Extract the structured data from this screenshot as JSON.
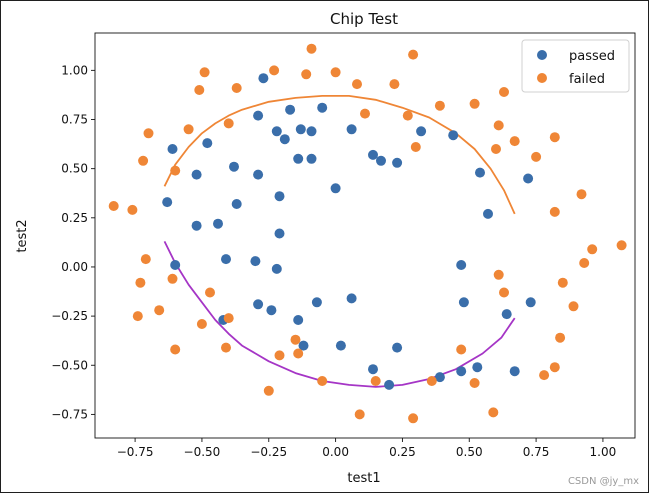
{
  "chart_data": {
    "type": "scatter",
    "title": "Chip Test",
    "xlabel": "test1",
    "ylabel": "test2",
    "xlim": [
      -0.9,
      1.12
    ],
    "ylim": [
      -0.87,
      1.19
    ],
    "xticks": [
      -0.75,
      -0.5,
      -0.25,
      0.0,
      0.25,
      0.5,
      0.75,
      1.0
    ],
    "xtick_labels": [
      "−0.75",
      "−0.50",
      "−0.25",
      "0.00",
      "0.25",
      "0.50",
      "0.75",
      "1.00"
    ],
    "yticks": [
      -0.75,
      -0.5,
      -0.25,
      0.0,
      0.25,
      0.5,
      0.75,
      1.0
    ],
    "ytick_labels": [
      "−0.75",
      "−0.50",
      "−0.25",
      "0.00",
      "0.25",
      "0.50",
      "0.75",
      "1.00"
    ],
    "grid": false,
    "legend_position": "top-right",
    "series": [
      {
        "name": "passed",
        "color": "#3a6eaa",
        "points": [
          [
            -0.61,
            0.6
          ],
          [
            -0.52,
            0.47
          ],
          [
            -0.48,
            0.63
          ],
          [
            -0.38,
            0.51
          ],
          [
            -0.27,
            0.96
          ],
          [
            -0.29,
            0.77
          ],
          [
            -0.22,
            0.69
          ],
          [
            -0.17,
            0.8
          ],
          [
            -0.13,
            0.7
          ],
          [
            -0.19,
            0.65
          ],
          [
            -0.14,
            0.55
          ],
          [
            -0.09,
            0.55
          ],
          [
            -0.09,
            0.69
          ],
          [
            -0.05,
            0.81
          ],
          [
            0.06,
            0.7
          ],
          [
            0.14,
            0.57
          ],
          [
            0.17,
            0.54
          ],
          [
            0.23,
            0.53
          ],
          [
            0.32,
            0.69
          ],
          [
            0.44,
            0.67
          ],
          [
            0.54,
            0.48
          ],
          [
            0.57,
            0.27
          ],
          [
            0.72,
            0.45
          ],
          [
            0.0,
            0.4
          ],
          [
            -0.63,
            0.33
          ],
          [
            -0.52,
            0.21
          ],
          [
            -0.44,
            0.22
          ],
          [
            -0.37,
            0.32
          ],
          [
            -0.21,
            0.36
          ],
          [
            -0.21,
            0.17
          ],
          [
            -0.29,
            0.47
          ],
          [
            -0.6,
            0.01
          ],
          [
            -0.41,
            0.04
          ],
          [
            -0.3,
            0.03
          ],
          [
            -0.22,
            -0.01
          ],
          [
            -0.42,
            -0.27
          ],
          [
            -0.29,
            -0.19
          ],
          [
            -0.24,
            -0.22
          ],
          [
            -0.14,
            -0.27
          ],
          [
            -0.12,
            -0.4
          ],
          [
            -0.07,
            -0.18
          ],
          [
            0.06,
            -0.16
          ],
          [
            0.02,
            -0.4
          ],
          [
            0.14,
            -0.52
          ],
          [
            0.2,
            -0.6
          ],
          [
            0.23,
            -0.41
          ],
          [
            0.39,
            -0.56
          ],
          [
            0.47,
            0.01
          ],
          [
            0.48,
            -0.18
          ],
          [
            0.47,
            -0.53
          ],
          [
            0.53,
            -0.51
          ],
          [
            0.64,
            -0.24
          ],
          [
            0.67,
            -0.53
          ],
          [
            0.73,
            -0.18
          ]
        ]
      },
      {
        "name": "failed",
        "color": "#ef8636",
        "points": [
          [
            -0.83,
            0.31
          ],
          [
            -0.76,
            0.29
          ],
          [
            -0.72,
            0.54
          ],
          [
            -0.7,
            0.68
          ],
          [
            -0.6,
            0.49
          ],
          [
            -0.55,
            0.7
          ],
          [
            -0.51,
            0.9
          ],
          [
            -0.49,
            0.99
          ],
          [
            -0.4,
            0.73
          ],
          [
            -0.37,
            0.91
          ],
          [
            -0.09,
            1.11
          ],
          [
            -0.11,
            0.98
          ],
          [
            -0.23,
            1.0
          ],
          [
            0.0,
            0.99
          ],
          [
            0.08,
            0.93
          ],
          [
            0.11,
            0.78
          ],
          [
            0.22,
            0.93
          ],
          [
            0.29,
            1.08
          ],
          [
            0.27,
            0.77
          ],
          [
            0.3,
            0.61
          ],
          [
            0.39,
            0.82
          ],
          [
            0.52,
            0.83
          ],
          [
            0.61,
            0.72
          ],
          [
            0.63,
            0.89
          ],
          [
            0.6,
            0.6
          ],
          [
            0.67,
            0.64
          ],
          [
            0.75,
            0.56
          ],
          [
            0.82,
            0.66
          ],
          [
            0.82,
            0.28
          ],
          [
            0.92,
            0.37
          ],
          [
            0.93,
            0.02
          ],
          [
            0.96,
            0.09
          ],
          [
            1.07,
            0.11
          ],
          [
            0.85,
            -0.08
          ],
          [
            0.89,
            -0.2
          ],
          [
            0.84,
            -0.36
          ],
          [
            0.78,
            -0.55
          ],
          [
            0.82,
            -0.51
          ],
          [
            0.61,
            -0.04
          ],
          [
            0.63,
            -0.13
          ],
          [
            0.59,
            -0.74
          ],
          [
            0.52,
            -0.59
          ],
          [
            0.47,
            -0.42
          ],
          [
            0.36,
            -0.58
          ],
          [
            0.29,
            -0.77
          ],
          [
            0.15,
            -0.58
          ],
          [
            0.09,
            -0.75
          ],
          [
            -0.05,
            -0.58
          ],
          [
            -0.25,
            -0.63
          ],
          [
            -0.21,
            -0.45
          ],
          [
            -0.15,
            -0.37
          ],
          [
            -0.14,
            -0.44
          ],
          [
            -0.41,
            -0.41
          ],
          [
            -0.4,
            -0.26
          ],
          [
            -0.47,
            -0.13
          ],
          [
            -0.5,
            -0.29
          ],
          [
            -0.66,
            -0.22
          ],
          [
            -0.74,
            -0.25
          ],
          [
            -0.73,
            -0.08
          ],
          [
            -0.71,
            0.04
          ],
          [
            -0.61,
            -0.06
          ],
          [
            -0.6,
            -0.42
          ]
        ]
      }
    ],
    "boundaries": [
      {
        "name": "upper-boundary",
        "color": "#ef8636",
        "points": [
          [
            -0.64,
            0.41
          ],
          [
            -0.6,
            0.52
          ],
          [
            -0.55,
            0.61
          ],
          [
            -0.5,
            0.68
          ],
          [
            -0.45,
            0.73
          ],
          [
            -0.4,
            0.77
          ],
          [
            -0.35,
            0.8
          ],
          [
            -0.25,
            0.84
          ],
          [
            -0.15,
            0.86
          ],
          [
            -0.05,
            0.87
          ],
          [
            0.05,
            0.87
          ],
          [
            0.15,
            0.85
          ],
          [
            0.25,
            0.81
          ],
          [
            0.35,
            0.76
          ],
          [
            0.45,
            0.68
          ],
          [
            0.52,
            0.6
          ],
          [
            0.58,
            0.5
          ],
          [
            0.63,
            0.39
          ],
          [
            0.67,
            0.27
          ]
        ]
      },
      {
        "name": "lower-boundary",
        "color": "#a535c6",
        "points": [
          [
            -0.64,
            0.13
          ],
          [
            -0.6,
            0.02
          ],
          [
            -0.55,
            -0.09
          ],
          [
            -0.5,
            -0.18
          ],
          [
            -0.45,
            -0.27
          ],
          [
            -0.4,
            -0.34
          ],
          [
            -0.35,
            -0.4
          ],
          [
            -0.25,
            -0.48
          ],
          [
            -0.15,
            -0.54
          ],
          [
            -0.05,
            -0.58
          ],
          [
            0.05,
            -0.6
          ],
          [
            0.15,
            -0.61
          ],
          [
            0.25,
            -0.6
          ],
          [
            0.35,
            -0.57
          ],
          [
            0.45,
            -0.52
          ],
          [
            0.55,
            -0.44
          ],
          [
            0.62,
            -0.36
          ],
          [
            0.67,
            -0.26
          ]
        ]
      }
    ]
  },
  "watermark": "CSDN @jy_mx"
}
